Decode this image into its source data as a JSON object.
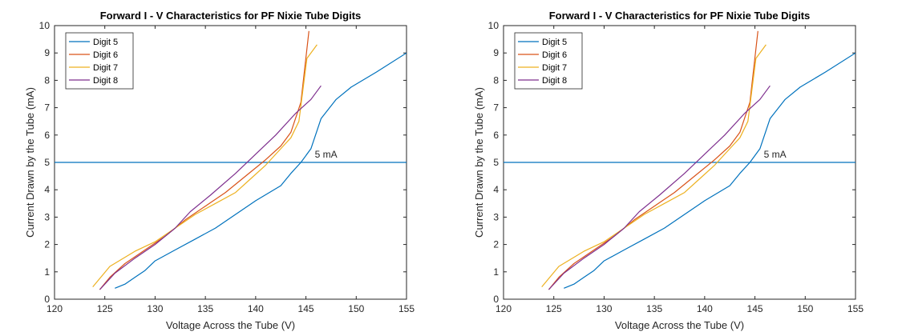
{
  "chart_data": [
    {
      "type": "line",
      "title": "Forward I - V Characteristics for PF Nixie Tube Digits",
      "xlabel": "Voltage Across the Tube (V)",
      "ylabel": "Current Drawn by the Tube (mA)",
      "xlim": [
        120,
        155
      ],
      "ylim": [
        0,
        10
      ],
      "xticks": [
        120,
        125,
        130,
        135,
        140,
        145,
        150,
        155
      ],
      "yticks": [
        0,
        1,
        2,
        3,
        4,
        5,
        6,
        7,
        8,
        9,
        10
      ],
      "grid": false,
      "legend_position": "top-left",
      "reference_line": {
        "y": 5,
        "label": "5 mA",
        "color": "#0072BD"
      },
      "series": [
        {
          "name": "Digit 5",
          "color": "#0072BD",
          "x": [
            126,
            127,
            128,
            129,
            130,
            132,
            134,
            136,
            138,
            140,
            142.5,
            143.5,
            144.5,
            145.5,
            146.5,
            148,
            149.5,
            152,
            155
          ],
          "y": [
            0.4,
            0.55,
            0.8,
            1.05,
            1.4,
            1.8,
            2.2,
            2.6,
            3.1,
            3.6,
            4.15,
            4.6,
            5.0,
            5.5,
            6.6,
            7.3,
            7.75,
            8.3,
            9.0
          ]
        },
        {
          "name": "Digit 6",
          "color": "#D95319",
          "x": [
            124.5,
            125.5,
            127,
            129,
            131,
            133,
            135,
            137,
            139,
            141,
            142.5,
            143.5,
            144.5,
            145.3
          ],
          "y": [
            0.35,
            0.8,
            1.3,
            1.8,
            2.3,
            2.9,
            3.4,
            3.9,
            4.5,
            5.1,
            5.6,
            6.1,
            7.2,
            9.8
          ]
        },
        {
          "name": "Digit 7",
          "color": "#EDB120",
          "x": [
            123.8,
            125.5,
            128,
            130,
            132,
            134,
            136,
            138,
            139.5,
            141,
            142.5,
            143.5,
            144.3,
            145.1,
            146.1
          ],
          "y": [
            0.45,
            1.2,
            1.75,
            2.1,
            2.6,
            3.1,
            3.5,
            3.9,
            4.4,
            4.9,
            5.5,
            5.9,
            6.5,
            8.8,
            9.3
          ]
        },
        {
          "name": "Digit 8",
          "color": "#7E2F8E",
          "x": [
            124.5,
            126,
            128,
            130,
            132,
            133.5,
            135.5,
            138,
            140,
            142,
            144,
            145.5,
            146.5
          ],
          "y": [
            0.35,
            0.95,
            1.5,
            2.0,
            2.6,
            3.2,
            3.8,
            4.6,
            5.3,
            6.0,
            6.8,
            7.3,
            7.8
          ]
        }
      ]
    },
    {
      "type": "line",
      "title": "Forward I - V Characteristics for PF Nixie Tube Digits",
      "xlabel": "Voltage Across the Tube (V)",
      "ylabel": "Current Drawn by the Tube (mA)",
      "xlim": [
        120,
        155
      ],
      "ylim": [
        0,
        10
      ],
      "xticks": [
        120,
        125,
        130,
        135,
        140,
        145,
        150,
        155
      ],
      "yticks": [
        0,
        1,
        2,
        3,
        4,
        5,
        6,
        7,
        8,
        9,
        10
      ],
      "grid": false,
      "legend_position": "top-left",
      "reference_line": {
        "y": 5,
        "label": "5 mA",
        "color": "#0072BD"
      },
      "series": [
        {
          "name": "Digit 5",
          "color": "#0072BD",
          "x": [
            126,
            127,
            128,
            129,
            130,
            132,
            134,
            136,
            138,
            140,
            142.5,
            143.5,
            144.5,
            145.5,
            146.5,
            148,
            149.5,
            152,
            155
          ],
          "y": [
            0.4,
            0.55,
            0.8,
            1.05,
            1.4,
            1.8,
            2.2,
            2.6,
            3.1,
            3.6,
            4.15,
            4.6,
            5.0,
            5.5,
            6.6,
            7.3,
            7.75,
            8.3,
            9.0
          ]
        },
        {
          "name": "Digit 6",
          "color": "#D95319",
          "x": [
            124.5,
            125.5,
            127,
            129,
            131,
            133,
            135,
            137,
            139,
            141,
            142.5,
            143.5,
            144.5,
            145.3
          ],
          "y": [
            0.35,
            0.8,
            1.3,
            1.8,
            2.3,
            2.9,
            3.4,
            3.9,
            4.5,
            5.1,
            5.6,
            6.1,
            7.2,
            9.8
          ]
        },
        {
          "name": "Digit 7",
          "color": "#EDB120",
          "x": [
            123.8,
            125.5,
            128,
            130,
            132,
            134,
            136,
            138,
            139.5,
            141,
            142.5,
            143.5,
            144.3,
            145.1,
            146.1
          ],
          "y": [
            0.45,
            1.2,
            1.75,
            2.1,
            2.6,
            3.1,
            3.5,
            3.9,
            4.4,
            4.9,
            5.5,
            5.9,
            6.5,
            8.8,
            9.3
          ]
        },
        {
          "name": "Digit 8",
          "color": "#7E2F8E",
          "x": [
            124.5,
            126,
            128,
            130,
            132,
            133.5,
            135.5,
            138,
            140,
            142,
            144,
            145.5,
            146.5
          ],
          "y": [
            0.35,
            0.95,
            1.5,
            2.0,
            2.6,
            3.2,
            3.8,
            4.6,
            5.3,
            6.0,
            6.8,
            7.3,
            7.8
          ]
        }
      ]
    }
  ]
}
